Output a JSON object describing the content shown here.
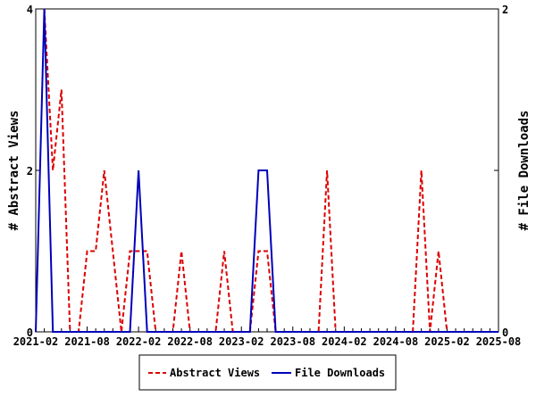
{
  "chart_data": {
    "type": "line",
    "title": "",
    "xlabel": "",
    "ylabel_left": "# Abstract Views",
    "ylabel_right": "# File Downloads",
    "x_start": "2021-02",
    "x_tick_labels": [
      "2021-02",
      "2021-08",
      "2022-02",
      "2022-08",
      "2023-02",
      "2023-08",
      "2024-02",
      "2024-08",
      "2025-02",
      "2025-08"
    ],
    "ylim_left": [
      0,
      4
    ],
    "ylim_right": [
      0,
      2
    ],
    "y_ticks_left": [
      "0",
      "2",
      "4"
    ],
    "y_ticks_right": [
      "0",
      "1",
      "2"
    ],
    "legend_position": "bottom-center",
    "series": [
      {
        "name": "Abstract Views",
        "axis": "left",
        "color": "#dd0000",
        "style": "dashed",
        "values": [
          null,
          4,
          2,
          3,
          0,
          0,
          1,
          1,
          2,
          1,
          0,
          1,
          1,
          1,
          0,
          0,
          0,
          1,
          0,
          0,
          0,
          0,
          1,
          0,
          0,
          0,
          1,
          1,
          0,
          0,
          0,
          0,
          0,
          0,
          2,
          0,
          0,
          0,
          0,
          0,
          0,
          0,
          0,
          0,
          0,
          2,
          0,
          1,
          0,
          0,
          0,
          0,
          0,
          0,
          0
        ]
      },
      {
        "name": "File Downloads",
        "axis": "right",
        "color": "#0000bb",
        "style": "solid",
        "values": [
          0,
          2,
          0,
          0,
          0,
          0,
          0,
          0,
          0,
          0,
          0,
          0,
          1,
          0,
          0,
          0,
          0,
          0,
          0,
          0,
          0,
          0,
          0,
          0,
          0,
          0,
          1,
          1,
          0,
          0,
          0,
          0,
          0,
          0,
          0,
          0,
          0,
          0,
          0,
          0,
          0,
          0,
          0,
          0,
          0,
          0,
          0,
          0,
          0,
          0,
          0,
          0,
          0,
          0,
          0
        ]
      }
    ]
  }
}
